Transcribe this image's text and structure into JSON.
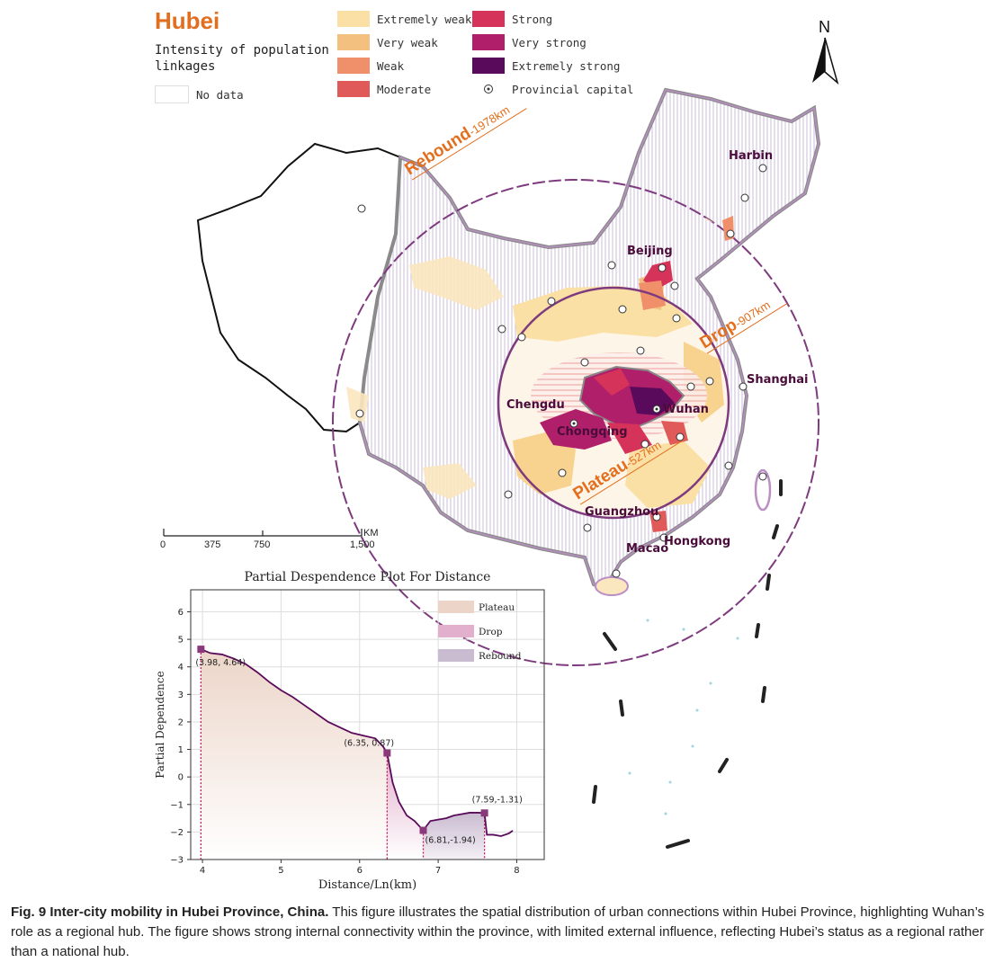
{
  "legend": {
    "province": "Hubei",
    "subtitle_line1": "Intensity of population",
    "subtitle_line2": "linkages",
    "no_data": "No data",
    "items": [
      {
        "label": "Extremely weak",
        "color": "#fbe0a6"
      },
      {
        "label": "Very weak",
        "color": "#f3c07f"
      },
      {
        "label": "Weak",
        "color": "#f0906b"
      },
      {
        "label": "Moderate",
        "color": "#e05a5a"
      },
      {
        "label": "Strong",
        "color": "#d6335a"
      },
      {
        "label": "Very strong",
        "color": "#b0206a"
      },
      {
        "label": "Extremely strong",
        "color": "#5a0a5a"
      }
    ],
    "capital_label": "Provincial capital"
  },
  "map": {
    "north_label": "N",
    "rings": {
      "rebound_word": "Rebound",
      "rebound_dist": "-1978km",
      "drop_word": "Drop",
      "drop_dist": "-907km",
      "plateau_word": "Plateau",
      "plateau_dist": "-527km"
    },
    "cities": {
      "harbin": "Harbin",
      "beijing": "Beijing",
      "shanghai": "Shanghai",
      "chengdu": "Chengdu",
      "wuhan": "Wuhan",
      "chongqing": "Chongqing",
      "guangzhou": "Guangzhou",
      "macao": "Macao",
      "hongkong": "Hongkong"
    },
    "scale": {
      "ticks": [
        "0",
        "375",
        "750",
        "1,500"
      ],
      "unit": "KM"
    }
  },
  "chart_data": {
    "type": "line",
    "title": "Partial Despendence Plot For Distance",
    "xlabel": "Distance/Ln(km)",
    "ylabel": "Partial Dependence",
    "xlim": [
      3.85,
      8.35
    ],
    "ylim": [
      -3,
      6.8
    ],
    "xticks": [
      4,
      5,
      6,
      7,
      8
    ],
    "yticks": [
      -3,
      -2,
      -1,
      0,
      1,
      2,
      3,
      4,
      5,
      6
    ],
    "ytick_labels": [
      "−3",
      "−2",
      "−1",
      "0",
      "1",
      "2",
      "3",
      "4",
      "5",
      "6"
    ],
    "legend": [
      {
        "label": "Plateau",
        "color": "#ecd5c8"
      },
      {
        "label": "Drop",
        "color": "#e2b0cc"
      },
      {
        "label": "Rebound",
        "color": "#c9bbd0"
      }
    ],
    "line_color": "#5a0a5a",
    "series": {
      "x": [
        3.98,
        4.1,
        4.25,
        4.4,
        4.55,
        4.7,
        4.85,
        5.0,
        5.15,
        5.3,
        5.45,
        5.6,
        5.75,
        5.9,
        6.05,
        6.2,
        6.3,
        6.35,
        6.42,
        6.5,
        6.6,
        6.7,
        6.81,
        6.9,
        7.0,
        7.1,
        7.2,
        7.3,
        7.4,
        7.5,
        7.59,
        7.62,
        7.7,
        7.8,
        7.9,
        7.95
      ],
      "y": [
        4.64,
        4.5,
        4.45,
        4.3,
        4.1,
        3.8,
        3.45,
        3.15,
        2.9,
        2.6,
        2.3,
        2.0,
        1.8,
        1.6,
        1.5,
        1.4,
        1.1,
        0.87,
        -0.2,
        -0.9,
        -1.4,
        -1.6,
        -1.94,
        -1.6,
        -1.55,
        -1.5,
        -1.4,
        -1.35,
        -1.3,
        -1.3,
        -1.31,
        -2.1,
        -2.1,
        -2.15,
        -2.05,
        -1.95
      ]
    },
    "annotations": [
      {
        "x": 3.98,
        "y": 4.64,
        "label": "(3.98, 4.64)"
      },
      {
        "x": 6.35,
        "y": 0.87,
        "label": "(6.35, 0.87)"
      },
      {
        "x": 6.81,
        "y": -1.94,
        "label": "(6.81,-1.94)"
      },
      {
        "x": 7.59,
        "y": -1.31,
        "label": "(7.59,-1.31)"
      }
    ]
  },
  "caption": {
    "bold": "Fig. 9 Inter-city mobility in Hubei Province, China.",
    "text": " This figure illustrates the spatial distribution of urban connections within Hubei Province, highlighting Wuhan’s role as a regional hub. The figure shows strong internal connectivity within the province, with limited external influence, reflecting Hubei’s status as a regional rather than a national hub."
  }
}
